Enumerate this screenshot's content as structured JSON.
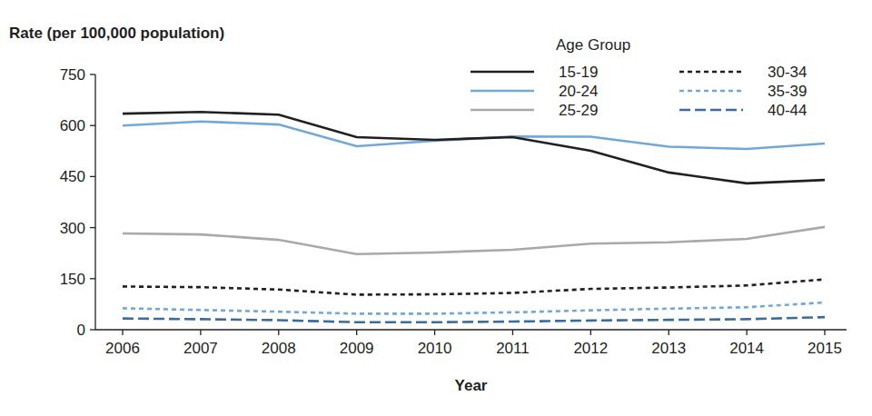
{
  "chart_data": {
    "type": "line",
    "y_label": "Rate (per 100,000 population)",
    "x_label": "Year",
    "legend_title": "Age Group",
    "legend": "top-right",
    "grid": false,
    "categories": [
      "2006",
      "2007",
      "2008",
      "2009",
      "2010",
      "2011",
      "2012",
      "2013",
      "2014",
      "2015"
    ],
    "ylim": [
      0,
      750
    ],
    "yticks": [
      0,
      150,
      300,
      450,
      600,
      750
    ],
    "series": [
      {
        "name": "15-19",
        "color": "#231f20",
        "line_style": "solid",
        "values": [
          635,
          640,
          632,
          566,
          558,
          566,
          526,
          462,
          430,
          440
        ]
      },
      {
        "name": "20-24",
        "color": "#72a8d8",
        "line_style": "solid",
        "values": [
          600,
          612,
          603,
          539,
          555,
          568,
          567,
          538,
          531,
          547
        ]
      },
      {
        "name": "25-29",
        "color": "#a7a9ac",
        "line_style": "solid",
        "values": [
          283,
          280,
          264,
          222,
          227,
          235,
          253,
          257,
          267,
          302
        ]
      },
      {
        "name": "30-34",
        "color": "#231f20",
        "line_style": "dotted",
        "values": [
          127,
          125,
          118,
          103,
          104,
          108,
          120,
          124,
          130,
          148
        ]
      },
      {
        "name": "35-39",
        "color": "#72a8d8",
        "line_style": "dotted",
        "values": [
          63,
          58,
          53,
          47,
          47,
          51,
          57,
          62,
          66,
          80
        ]
      },
      {
        "name": "40-44",
        "color": "#3b6c9e",
        "line_style": "dashed",
        "values": [
          33,
          31,
          28,
          22,
          22,
          24,
          27,
          29,
          31,
          37
        ]
      }
    ]
  }
}
